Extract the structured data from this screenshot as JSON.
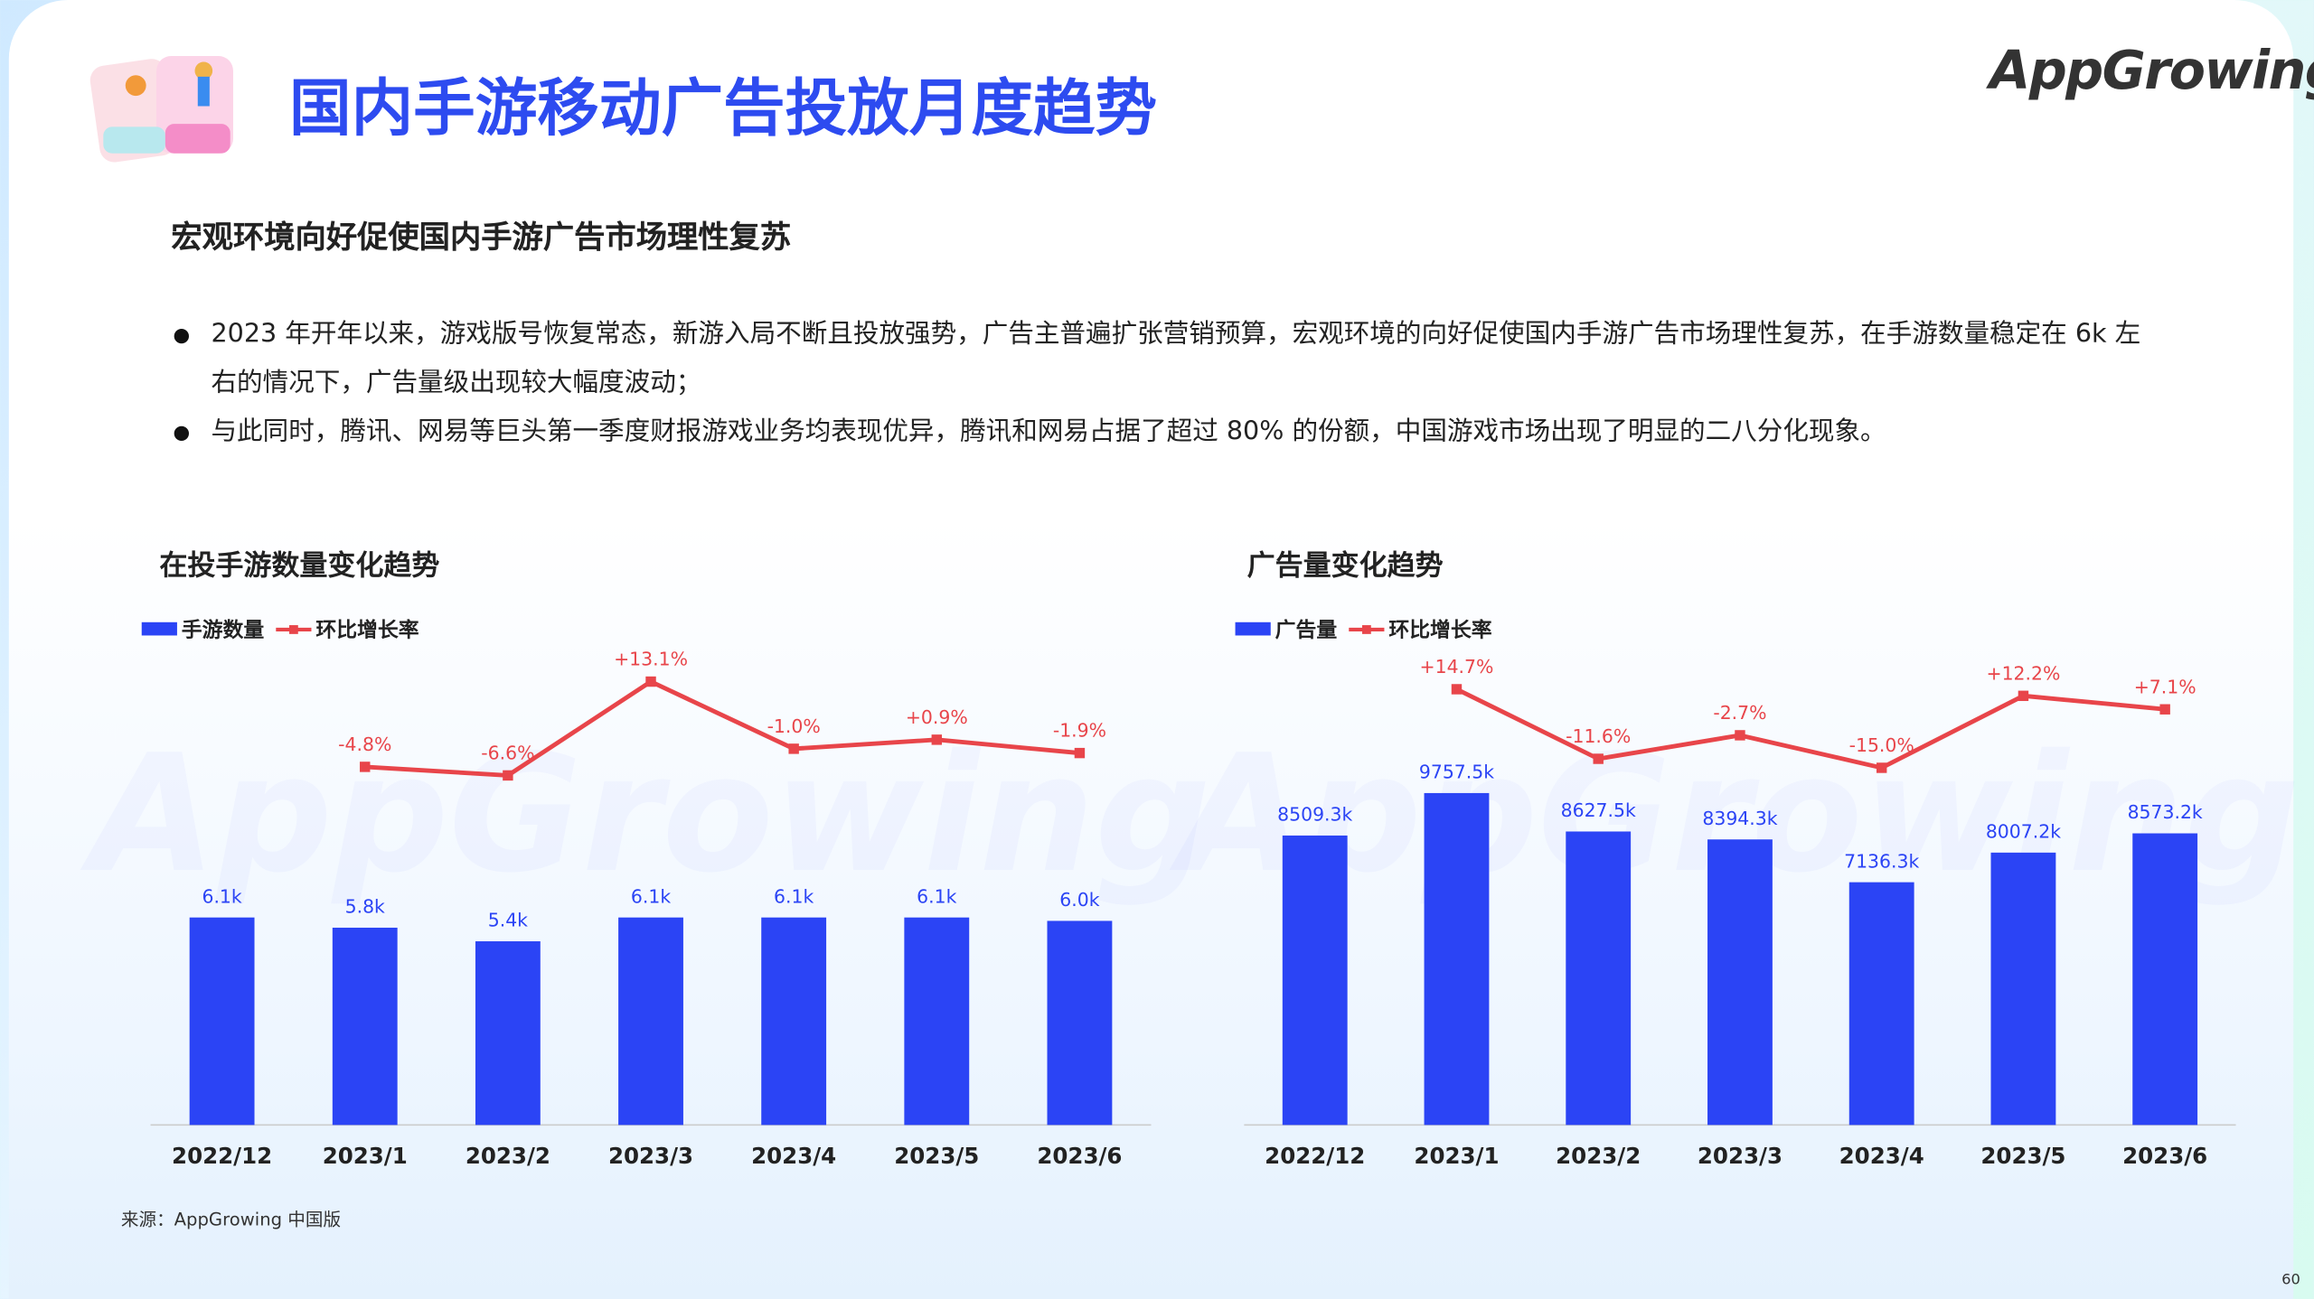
{
  "header": {
    "title": "国内手游移动广告投放月度趋势",
    "logo": "AppGrowing"
  },
  "subtitle": "宏观环境向好促使国内手游广告市场理性复苏",
  "bullets": [
    "2023 年开年以来，游戏版号恢复常态，新游入局不断且投放强势，广告主普遍扩张营销预算，宏观环境的向好促使国内手游广告市场理性复苏，在手游数量稳定在 6k 左右的情况下，广告量级出现较大幅度波动；",
    "与此同时，腾讯、网易等巨头第一季度财报游戏业务均表现优异，腾讯和网易占据了超过 80% 的份额，中国游戏市场出现了明显的二八分化现象。"
  ],
  "chart_data": [
    {
      "type": "bar",
      "title": "在投手游数量变化趋势",
      "categories": [
        "2022/12",
        "2023/1",
        "2023/2",
        "2023/3",
        "2023/4",
        "2023/5",
        "2023/6"
      ],
      "ylim": [
        0,
        14000
      ],
      "y2lim": [
        -80,
        20
      ],
      "series": [
        {
          "name": "手游数量",
          "type": "bar",
          "color": "#2b44f5",
          "values": [
            6100,
            5800,
            5400,
            6100,
            6100,
            6100,
            6000
          ],
          "value_labels": [
            "6.1k",
            "5.8k",
            "5.4k",
            "6.1k",
            "6.1k",
            "6.1k",
            "6.0k"
          ]
        },
        {
          "name": "环比增长率",
          "type": "line",
          "axis": "y2",
          "color": "#e8454a",
          "values": [
            null,
            -4.8,
            -6.6,
            13.1,
            -1.0,
            0.9,
            -1.9
          ],
          "value_labels": [
            null,
            "-4.8%",
            "-6.6%",
            "+13.1%",
            "-1.0%",
            "+0.9%",
            "-1.9%"
          ]
        }
      ]
    },
    {
      "type": "bar",
      "title": "广告量变化趋势",
      "categories": [
        "2022/12",
        "2023/1",
        "2023/2",
        "2023/3",
        "2023/4",
        "2023/5",
        "2023/6"
      ],
      "ylim": [
        0,
        14000000
      ],
      "y2lim": [
        -150,
        30
      ],
      "series": [
        {
          "name": "广告量",
          "type": "bar",
          "color": "#2b44f5",
          "values": [
            8509300,
            9757500,
            8627500,
            8394300,
            7136300,
            8007200,
            8573200
          ],
          "value_labels": [
            "8509.3k",
            "9757.5k",
            "8627.5k",
            "8394.3k",
            "7136.3k",
            "8007.2k",
            "8573.2k"
          ]
        },
        {
          "name": "环比增长率",
          "type": "line",
          "axis": "y2",
          "color": "#e8454a",
          "values": [
            null,
            14.7,
            -11.6,
            -2.7,
            -15.0,
            12.2,
            7.1
          ],
          "value_labels": [
            null,
            "+14.7%",
            "-11.6%",
            "-2.7%",
            "-15.0%",
            "+12.2%",
            "+7.1%"
          ]
        }
      ]
    }
  ],
  "source": "来源：AppGrowing 中国版",
  "page_number": "60"
}
